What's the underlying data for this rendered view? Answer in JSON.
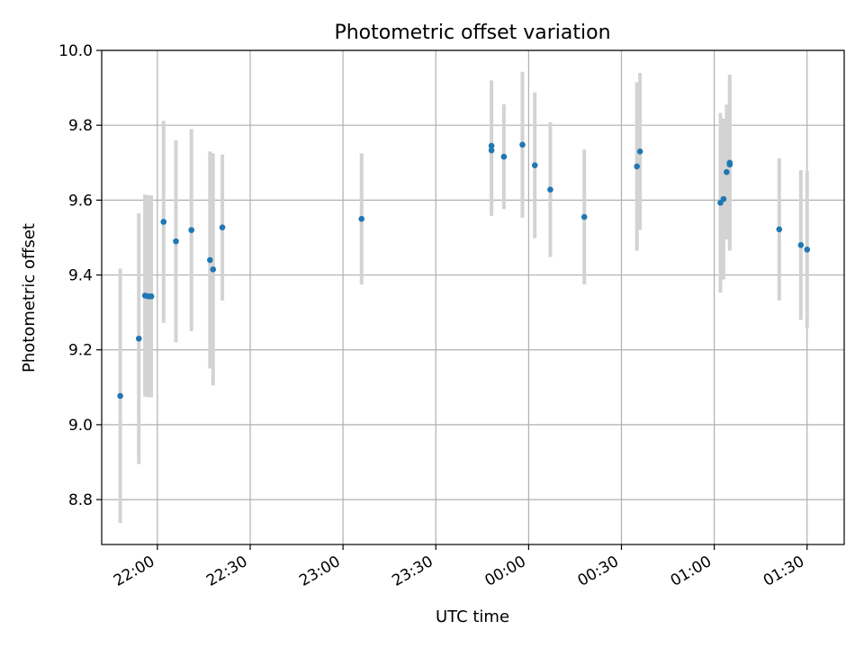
{
  "chart_data": {
    "type": "scatter",
    "title": "Photometric offset variation",
    "xlabel": "UTC time",
    "ylabel": "Photometric offset",
    "x_axis_kind": "datetime",
    "xlim": [
      "21:42",
      "01:42"
    ],
    "ylim": [
      8.68,
      10.0
    ],
    "grid": true,
    "x_ticks": [
      "22:00",
      "22:30",
      "23:00",
      "23:30",
      "00:00",
      "00:30",
      "01:00",
      "01:30"
    ],
    "y_ticks": [
      "8.8",
      "9.0",
      "9.2",
      "9.4",
      "9.6",
      "9.8",
      "10.0"
    ],
    "colors": {
      "points": "#1f77b4",
      "error_bars": "#d3d3d3",
      "grid": "#b0b0b0"
    },
    "points": [
      {
        "time": "21:48",
        "y": 9.077,
        "yerr": 0.34
      },
      {
        "time": "21:54",
        "y": 9.23,
        "yerr": 0.335
      },
      {
        "time": "21:56",
        "y": 9.345,
        "yerr": 0.27
      },
      {
        "time": "21:57",
        "y": 9.343,
        "yerr": 0.27
      },
      {
        "time": "21:58",
        "y": 9.343,
        "yerr": 0.27
      },
      {
        "time": "21:58",
        "y": 9.343,
        "yerr": 0.27
      },
      {
        "time": "22:02",
        "y": 9.542,
        "yerr": 0.27
      },
      {
        "time": "22:06",
        "y": 9.49,
        "yerr": 0.27
      },
      {
        "time": "22:11",
        "y": 9.52,
        "yerr": 0.27
      },
      {
        "time": "22:17",
        "y": 9.44,
        "yerr": 0.29
      },
      {
        "time": "22:18",
        "y": 9.415,
        "yerr": 0.31
      },
      {
        "time": "22:21",
        "y": 9.527,
        "yerr": 0.195
      },
      {
        "time": "23:06",
        "y": 9.55,
        "yerr": 0.175
      },
      {
        "time": "23:48",
        "y": 9.745,
        "yerr": 0.175
      },
      {
        "time": "23:48",
        "y": 9.733,
        "yerr": 0.175
      },
      {
        "time": "23:52",
        "y": 9.716,
        "yerr": 0.14
      },
      {
        "time": "23:58",
        "y": 9.748,
        "yerr": 0.195
      },
      {
        "time": "00:02",
        "y": 9.693,
        "yerr": 0.195
      },
      {
        "time": "00:07",
        "y": 9.628,
        "yerr": 0.18
      },
      {
        "time": "00:18",
        "y": 9.555,
        "yerr": 0.18
      },
      {
        "time": "00:35",
        "y": 9.69,
        "yerr": 0.225
      },
      {
        "time": "00:36",
        "y": 9.73,
        "yerr": 0.21
      },
      {
        "time": "01:02",
        "y": 9.593,
        "yerr": 0.24
      },
      {
        "time": "01:03",
        "y": 9.603,
        "yerr": 0.215
      },
      {
        "time": "01:04",
        "y": 9.675,
        "yerr": 0.18
      },
      {
        "time": "01:05",
        "y": 9.7,
        "yerr": 0.235
      },
      {
        "time": "01:05",
        "y": 9.695,
        "yerr": 0.22
      },
      {
        "time": "01:21",
        "y": 9.522,
        "yerr": 0.19
      },
      {
        "time": "01:28",
        "y": 9.48,
        "yerr": 0.2
      },
      {
        "time": "01:30",
        "y": 9.468,
        "yerr": 0.21
      }
    ]
  }
}
